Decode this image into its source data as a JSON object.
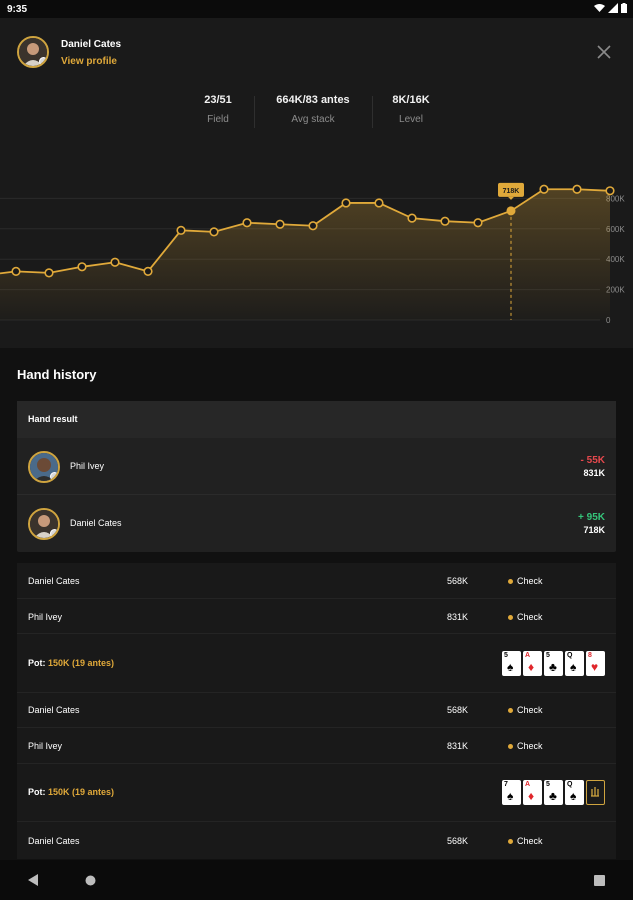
{
  "status_bar": {
    "time": "9:35"
  },
  "profile": {
    "name": "Daniel Cates",
    "link": "View profile"
  },
  "stats": [
    {
      "value": "23/51",
      "label": "Field"
    },
    {
      "value": "664K/83 antes",
      "label": "Avg stack"
    },
    {
      "value": "8K/16K",
      "label": "Level"
    }
  ],
  "chart_data": {
    "type": "area",
    "x": [
      1,
      2,
      3,
      4,
      5,
      6,
      7,
      8,
      9,
      10,
      11,
      12,
      13,
      14,
      15,
      16,
      17,
      18,
      19
    ],
    "values": [
      320,
      310,
      350,
      380,
      320,
      590,
      580,
      640,
      630,
      620,
      770,
      770,
      670,
      650,
      640,
      718,
      860,
      860,
      850
    ],
    "highlight": {
      "index": 15,
      "label": "718K"
    },
    "ytick_labels": [
      "800K",
      "600K",
      "400K",
      "200K",
      "0"
    ],
    "ytick_values": [
      800,
      600,
      400,
      200,
      0
    ],
    "ylim": [
      0,
      1000
    ],
    "grid": true,
    "line_color": "#e0a93a"
  },
  "hand_history": {
    "title": "Hand history",
    "result_header": "Hand result",
    "results": [
      {
        "name": "Phil Ivey",
        "delta": "- 55K",
        "delta_color": "#e5484d",
        "total": "831K"
      },
      {
        "name": "Daniel Cates",
        "delta": "+ 95K",
        "delta_color": "#35c47a",
        "total": "718K"
      }
    ],
    "actions_a": [
      {
        "name": "Daniel Cates",
        "amount": "568K",
        "action": "Check"
      },
      {
        "name": "Phil Ivey",
        "amount": "831K",
        "action": "Check"
      }
    ],
    "pot_a": {
      "label": "Pot:",
      "value": "150K (19 antes)"
    },
    "board_a": [
      {
        "rank": "5",
        "suit": "♠",
        "red": false
      },
      {
        "rank": "A",
        "suit": "♦",
        "red": true
      },
      {
        "rank": "5",
        "suit": "♣",
        "red": false
      },
      {
        "rank": "Q",
        "suit": "♠",
        "red": false
      },
      {
        "rank": "8",
        "suit": "♥",
        "red": true
      }
    ],
    "actions_b": [
      {
        "name": "Daniel Cates",
        "amount": "568K",
        "action": "Check"
      },
      {
        "name": "Phil Ivey",
        "amount": "831K",
        "action": "Check"
      }
    ],
    "pot_b": {
      "label": "Pot:",
      "value": "150K (19 antes)"
    },
    "board_b": [
      {
        "rank": "7",
        "suit": "♠",
        "red": false
      },
      {
        "rank": "A",
        "suit": "♦",
        "red": true
      },
      {
        "rank": "5",
        "suit": "♣",
        "red": false
      },
      {
        "rank": "Q",
        "suit": "♠",
        "red": false
      }
    ],
    "actions_c": [
      {
        "name": "Daniel Cates",
        "amount": "568K",
        "action": "Check"
      }
    ]
  }
}
